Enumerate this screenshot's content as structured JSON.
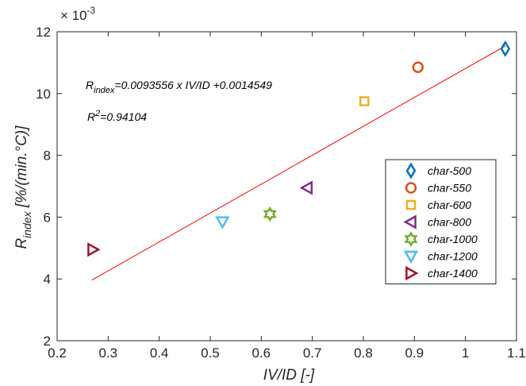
{
  "chart_data": {
    "type": "scatter",
    "xlabel": "IV/ID [-]",
    "ylabel_main": "R",
    "ylabel_sub": "index",
    "ylabel_rest": " [%/(min.°C)]",
    "exponent_base": "× 10",
    "exponent_power": "-3",
    "xlim": [
      0.2,
      1.1
    ],
    "ylim": [
      2,
      12
    ],
    "xticks": [
      0.2,
      0.3,
      0.4,
      0.5,
      0.6,
      0.7,
      0.8,
      0.9,
      1,
      1.1
    ],
    "yticks": [
      2,
      4,
      6,
      8,
      10,
      12
    ],
    "grid": false,
    "legend_position": "right",
    "series": [
      {
        "name": "char-500",
        "marker": "diamond",
        "color": "#0072BD",
        "x": 1.078,
        "y": 11.45
      },
      {
        "name": "char-550",
        "marker": "circle",
        "color": "#D95319",
        "x": 0.907,
        "y": 10.85
      },
      {
        "name": "char-600",
        "marker": "square",
        "color": "#EDB120",
        "x": 0.802,
        "y": 9.75
      },
      {
        "name": "char-800",
        "marker": "triangle-left",
        "color": "#7E2F8E",
        "x": 0.69,
        "y": 6.95
      },
      {
        "name": "char-1000",
        "marker": "hexagram",
        "color": "#77AC30",
        "x": 0.617,
        "y": 6.1
      },
      {
        "name": "char-1200",
        "marker": "triangle-down",
        "color": "#4DBEEE",
        "x": 0.524,
        "y": 5.85
      },
      {
        "name": "char-1400",
        "marker": "triangle-right",
        "color": "#A2142F",
        "x": 0.27,
        "y": 4.95
      }
    ],
    "fit": {
      "color": "#FF0000",
      "slope": 0.0093556,
      "intercept": 0.0014549,
      "x_range": [
        0.268,
        1.078
      ],
      "equation_r": "R",
      "equation_sub": "index",
      "equation_rest": "=0.0093556 x IV/ID +0.0014549",
      "r2_r": "R",
      "r2_sup": "2",
      "r2_rest": "=0.94104"
    }
  }
}
